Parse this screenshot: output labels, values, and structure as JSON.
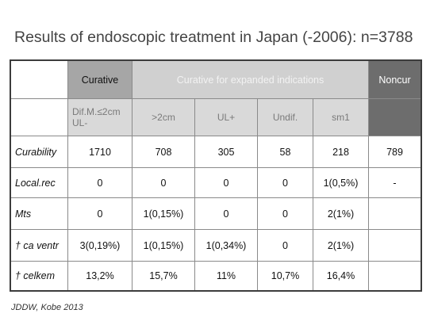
{
  "title": "Results of endoscopic treatment in Japan (-2006): n=3788",
  "table": {
    "header": [
      {
        "text": "Curative"
      },
      {
        "text": "Curative for expanded indications"
      },
      {
        "text": "Noncur"
      }
    ],
    "subheader": [
      [
        "Dif.M.≤2cm",
        "UL-"
      ],
      [
        ">2cm"
      ],
      [
        "UL+"
      ],
      [
        "Undif."
      ],
      [
        "sm1"
      ]
    ],
    "rows": [
      {
        "label": "Curability",
        "cells": [
          "1710",
          "708",
          "305",
          "58",
          "218",
          "789"
        ]
      },
      {
        "label": "Local.rec",
        "cells": [
          "0",
          "0",
          "0",
          "0",
          "1(0,5%)",
          "-"
        ]
      },
      {
        "label": "Mts",
        "cells": [
          "0",
          "1(0,15%)",
          "0",
          "0",
          "2(1%)"
        ]
      },
      {
        "label": "† ca ventr",
        "cells": [
          "3(0,19%)",
          "1(0,15%)",
          "1(0,34%)",
          "0",
          "2(1%)"
        ]
      },
      {
        "label": "† celkem",
        "cells": [
          "13,2%",
          "15,7%",
          "11%",
          "10,7%",
          "16,4%"
        ]
      }
    ]
  },
  "footer": "JDDW, Kobe 2013"
}
